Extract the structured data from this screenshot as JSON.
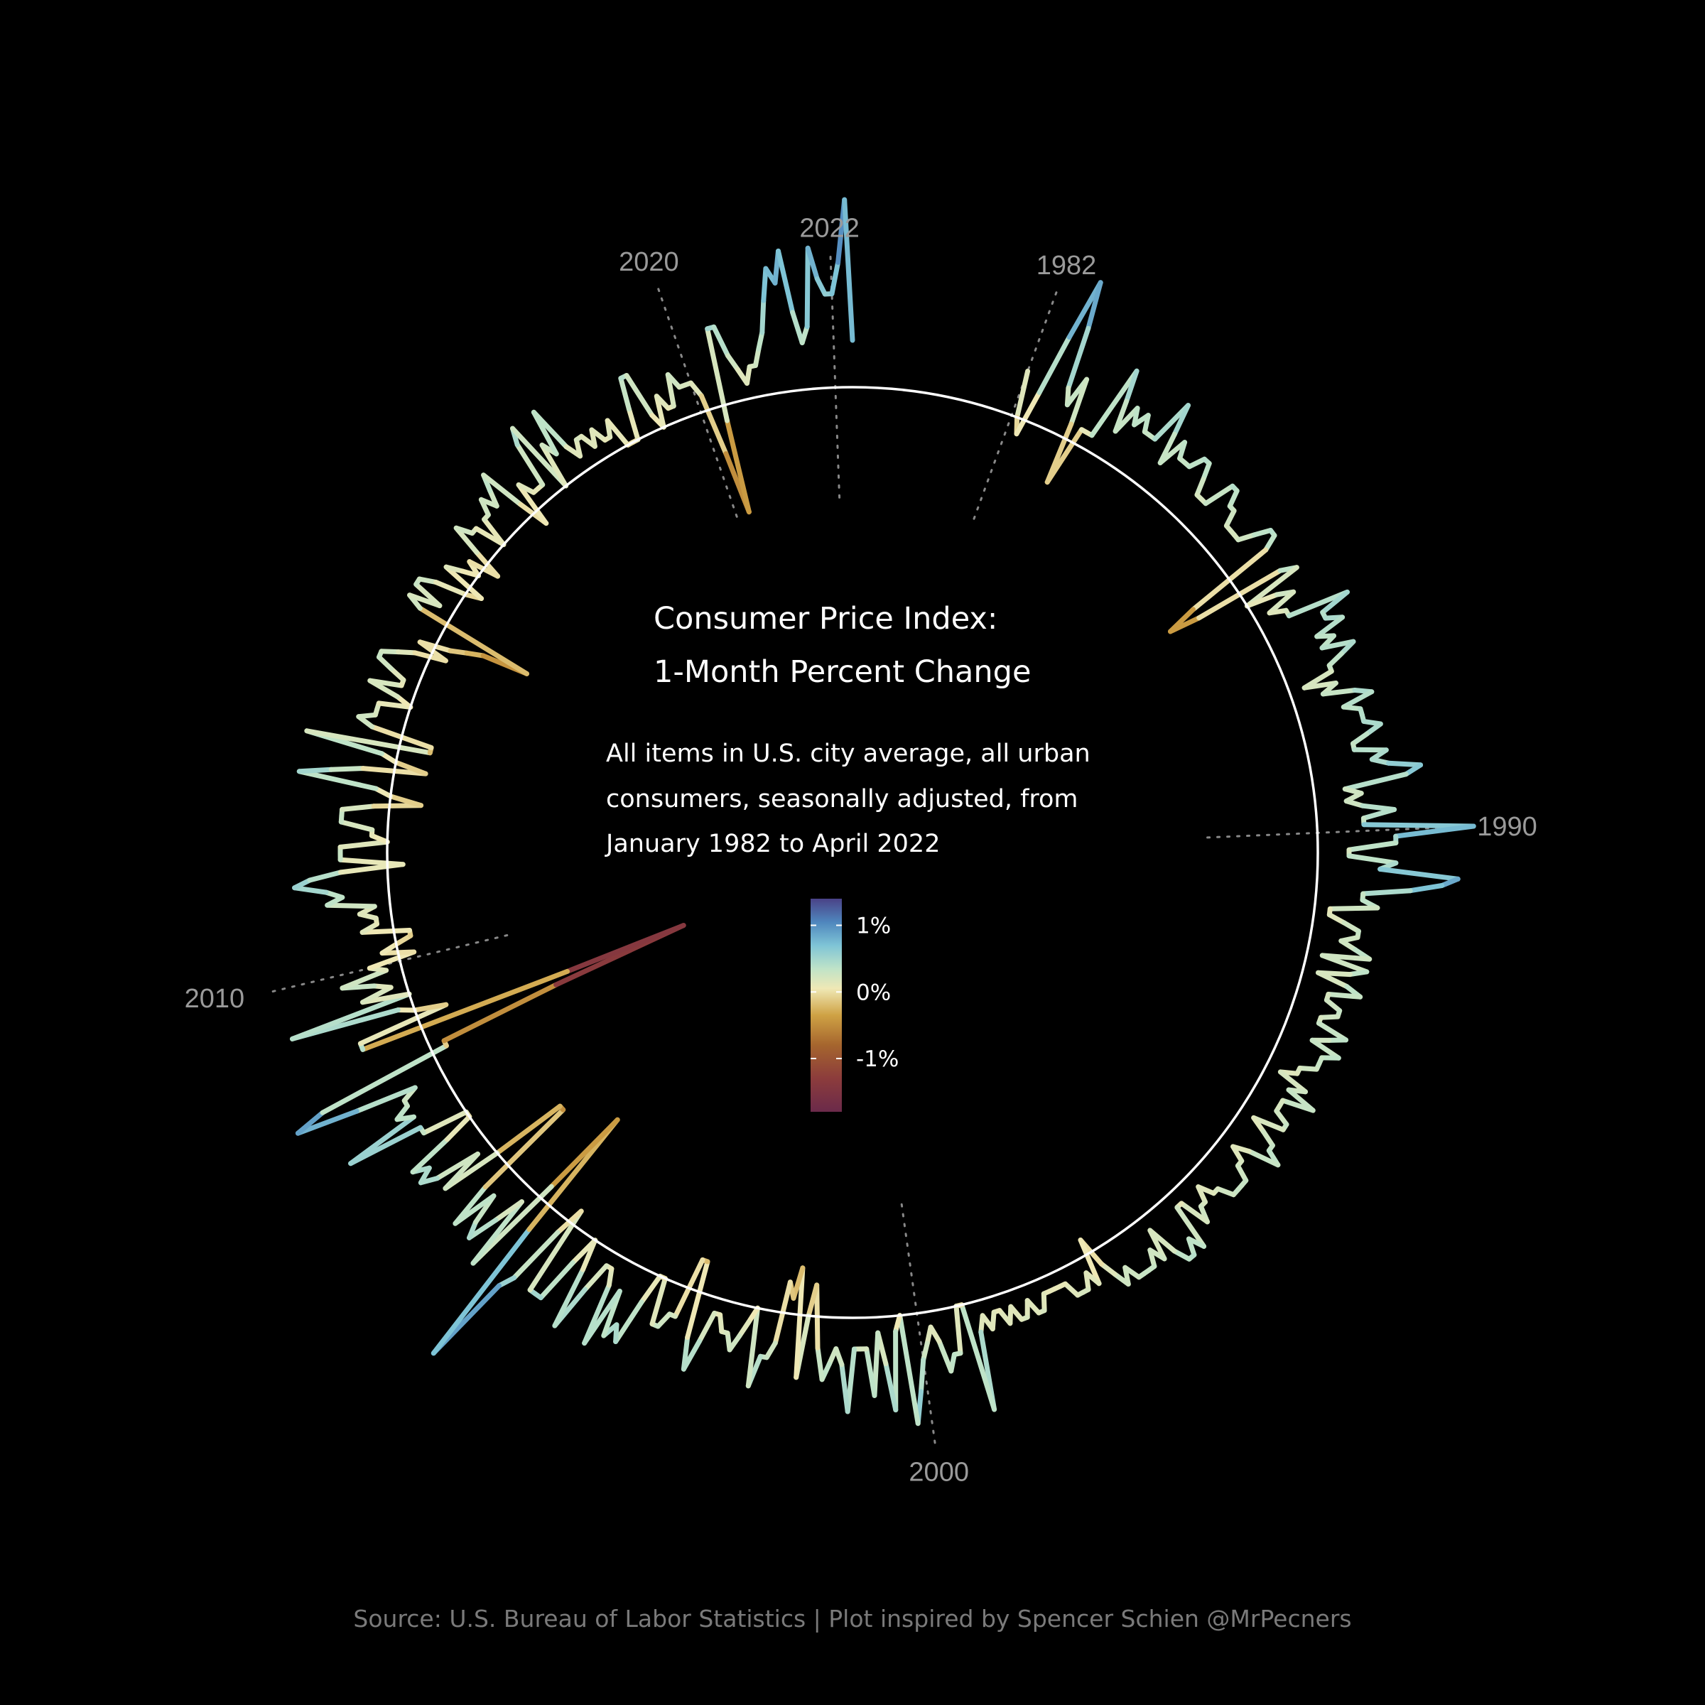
{
  "chart_data": {
    "type": "radial-line",
    "title_lines": [
      "Consumer Price Index:",
      "1-Month Percent Change"
    ],
    "subtitle_lines": [
      "All items in U.S. city average, all urban",
      "consumers, seasonally adjusted, from",
      "January 1982 to April 2022"
    ],
    "source": "Source: U.S. Bureau of Labor Statistics | Plot inspired by Spencer Schien @MrPecners",
    "start": "1982-01",
    "end": "2022-04",
    "unit": "% change from previous month",
    "baseline": 0,
    "direction": "clockwise",
    "year_labels": [
      "1982",
      "1990",
      "2000",
      "2010",
      "2020",
      "2022"
    ],
    "colorbar": {
      "ticks": [
        1,
        0,
        -1
      ],
      "tick_labels": [
        "1%",
        "0%",
        "-1%"
      ],
      "range": [
        -1.8,
        1.4
      ],
      "stops": [
        {
          "v": -1.8,
          "c": "#6b2a4a"
        },
        {
          "v": -1.3,
          "c": "#8c3c3c"
        },
        {
          "v": -0.8,
          "c": "#a5652e"
        },
        {
          "v": -0.35,
          "c": "#cfa244"
        },
        {
          "v": 0.05,
          "c": "#efe8b5"
        },
        {
          "v": 0.35,
          "c": "#bfe3c8"
        },
        {
          "v": 0.7,
          "c": "#7ec4d6"
        },
        {
          "v": 1.05,
          "c": "#4f86bd"
        },
        {
          "v": 1.4,
          "c": "#4a4287"
        }
      ]
    },
    "values_by_year": [
      {
        "year": 1982,
        "values": [
          0.3,
          0.0,
          -0.1,
          0.2,
          0.6,
          1.0,
          0.7,
          0.3,
          0.2,
          0.4,
          0.1,
          -0.3
        ]
      },
      {
        "year": 1983,
        "values": [
          0.1,
          0.1,
          0.1,
          0.6,
          0.4,
          0.2,
          0.4,
          0.3,
          0.4,
          0.3,
          0.3,
          0.3
        ]
      },
      {
        "year": 1984,
        "values": [
          0.6,
          0.4,
          0.2,
          0.4,
          0.3,
          0.3,
          0.3,
          0.4,
          0.4,
          0.3,
          0.2,
          0.2
        ]
      },
      {
        "year": 1985,
        "values": [
          0.2,
          0.4,
          0.4,
          0.3,
          0.3,
          0.2,
          0.2,
          0.2,
          0.2,
          0.3,
          0.4,
          0.4
        ]
      },
      {
        "year": 1986,
        "values": [
          0.3,
          -0.3,
          -0.5,
          -0.3,
          0.3,
          0.4,
          0.0,
          0.2,
          0.3,
          0.1,
          0.2,
          0.2
        ]
      },
      {
        "year": 1987,
        "values": [
          0.6,
          0.4,
          0.4,
          0.5,
          0.3,
          0.4,
          0.3,
          0.5,
          0.4,
          0.3,
          0.3,
          0.1
        ]
      },
      {
        "year": 1988,
        "values": [
          0.3,
          0.2,
          0.4,
          0.5,
          0.3,
          0.4,
          0.4,
          0.4,
          0.5,
          0.4,
          0.3,
          0.3
        ]
      },
      {
        "year": 1989,
        "values": [
          0.5,
          0.4,
          0.5,
          0.7,
          0.6,
          0.2,
          0.3,
          0.2,
          0.3,
          0.5,
          0.3,
          0.3
        ]
      },
      {
        "year": 1990,
        "values": [
          1.0,
          0.5,
          0.5,
          0.2,
          0.2,
          0.5,
          0.4,
          0.9,
          0.8,
          0.6,
          0.3,
          0.3
        ]
      },
      {
        "year": 1991,
        "values": [
          0.4,
          0.1,
          0.1,
          0.2,
          0.3,
          0.3,
          0.2,
          0.3,
          0.4,
          0.1,
          0.4,
          0.3
        ]
      },
      {
        "year": 1992,
        "values": [
          0.1,
          0.3,
          0.4,
          0.2,
          0.2,
          0.3,
          0.3,
          0.2,
          0.2,
          0.4,
          0.3,
          0.2
        ]
      },
      {
        "year": 1993,
        "values": [
          0.4,
          0.3,
          0.3,
          0.3,
          0.2,
          0.2,
          0.1,
          0.3,
          0.2,
          0.4,
          0.2,
          0.2
        ]
      },
      {
        "year": 1994,
        "values": [
          0.2,
          0.3,
          0.3,
          0.1,
          0.2,
          0.3,
          0.3,
          0.4,
          0.2,
          0.1,
          0.2,
          0.2
        ]
      },
      {
        "year": 1995,
        "values": [
          0.3,
          0.3,
          0.3,
          0.3,
          0.2,
          0.2,
          0.1,
          0.2,
          0.2,
          0.3,
          0.1,
          0.1
        ]
      },
      {
        "year": 1996,
        "values": [
          0.4,
          0.3,
          0.4,
          0.4,
          0.3,
          0.1,
          0.3,
          0.2,
          0.3,
          0.3,
          0.3,
          0.3
        ]
      },
      {
        "year": 1997,
        "values": [
          0.2,
          0.3,
          0.2,
          0.1,
          -0.1,
          0.2,
          0.1,
          0.2,
          0.2,
          0.2,
          0.1,
          0.1
        ]
      },
      {
        "year": 1998,
        "values": [
          0.1,
          0.1,
          0.1,
          0.2,
          0.2,
          0.1,
          0.2,
          0.2,
          0.1,
          0.2,
          0.1,
          0.1
        ]
      },
      {
        "year": 1999,
        "values": [
          0.2,
          0.1,
          0.2,
          0.7,
          0.0,
          0.0,
          0.3,
          0.3,
          0.4,
          0.2,
          0.1,
          0.2
        ]
      },
      {
        "year": 2000,
        "values": [
          0.3,
          0.5,
          0.7,
          0.0,
          0.1,
          0.6,
          0.3,
          0.1,
          0.5,
          0.2,
          0.2,
          0.2
        ]
      },
      {
        "year": 2001,
        "values": [
          0.6,
          0.3,
          0.2,
          0.3,
          0.4,
          0.2,
          -0.2,
          0.0,
          0.4,
          -0.3,
          -0.1,
          -0.2
        ]
      },
      {
        "year": 2002,
        "values": [
          0.2,
          0.3,
          0.3,
          0.5,
          0.0,
          0.1,
          0.2,
          0.3,
          0.2,
          0.2,
          0.1,
          0.1
        ]
      },
      {
        "year": 2003,
        "values": [
          0.3,
          0.5,
          0.3,
          -0.2,
          -0.2,
          0.2,
          0.2,
          0.3,
          0.3,
          0.0,
          0.0,
          0.2
        ]
      },
      {
        "year": 2004,
        "values": [
          0.5,
          0.4,
          0.5,
          0.2,
          0.6,
          0.2,
          0.1,
          0.1,
          0.3,
          0.6,
          0.2,
          0.0
        ]
      },
      {
        "year": 2005,
        "values": [
          0.2,
          0.5,
          0.5,
          0.5,
          -0.1,
          0.1,
          0.5,
          0.6,
          1.2,
          0.2,
          -0.7,
          -0.1
        ]
      },
      {
        "year": 2006,
        "values": [
          0.6,
          0.1,
          0.3,
          0.5,
          0.4,
          0.2,
          0.5,
          0.2,
          -0.5,
          -0.5,
          0.0,
          0.4
        ]
      },
      {
        "year": 2007,
        "values": [
          0.1,
          0.4,
          0.5,
          0.4,
          0.5,
          0.2,
          0.0,
          0.0,
          0.3,
          0.3,
          0.8,
          0.3
        ]
      },
      {
        "year": 2008,
        "values": [
          0.4,
          0.3,
          0.3,
          0.2,
          0.6,
          1.0,
          0.8,
          -0.1,
          -0.1,
          -0.9,
          -1.8,
          -1.0
        ]
      },
      {
        "year": 2009,
        "values": [
          0.4,
          0.4,
          -0.2,
          0.0,
          0.1,
          0.8,
          0.0,
          0.3,
          0.1,
          0.2,
          0.4,
          0.1
        ]
      },
      {
        "year": 2010,
        "values": [
          0.2,
          -0.1,
          0.1,
          0.0,
          -0.1,
          -0.1,
          0.2,
          0.1,
          0.1,
          0.2,
          0.1,
          0.4
        ]
      },
      {
        "year": 2011,
        "values": [
          0.3,
          0.4,
          0.6,
          0.5,
          0.3,
          -0.1,
          0.3,
          0.3,
          0.3,
          0.0,
          0.1,
          0.1
        ]
      },
      {
        "year": 2012,
        "values": [
          0.3,
          0.3,
          0.3,
          0.1,
          -0.2,
          0.0,
          0.1,
          0.6,
          0.4,
          0.2,
          -0.2,
          0.0
        ]
      },
      {
        "year": 2013,
        "values": [
          0.1,
          0.6,
          -0.2,
          -0.2,
          0.2,
          0.3,
          0.2,
          0.2,
          0.2,
          0.0,
          0.1,
          0.3
        ]
      },
      {
        "year": 2014,
        "values": [
          0.1,
          0.1,
          0.2,
          0.3,
          0.3,
          0.2,
          0.1,
          -0.1,
          0.1,
          -0.1,
          -0.2,
          -0.3
        ]
      },
      {
        "year": 2015,
        "values": [
          -0.6,
          0.2,
          0.3,
          0.1,
          0.3,
          0.3,
          0.2,
          0.0,
          -0.1,
          0.2,
          0.1,
          0.0
        ]
      },
      {
        "year": 2016,
        "values": [
          0.1,
          -0.1,
          0.1,
          0.3,
          0.2,
          0.2,
          0.0,
          0.2,
          0.2,
          0.3,
          0.2,
          0.3
        ]
      },
      {
        "year": 2017,
        "values": [
          0.4,
          0.1,
          -0.1,
          0.2,
          0.1,
          0.1,
          0.1,
          0.4,
          0.5,
          0.0,
          0.3,
          0.2
        ]
      },
      {
        "year": 2018,
        "values": [
          0.5,
          0.2,
          0.1,
          0.2,
          0.2,
          0.1,
          0.2,
          0.1,
          0.1,
          0.2,
          0.0,
          0.0
        ]
      },
      {
        "year": 2019,
        "values": [
          0.0,
          0.2,
          0.4,
          0.4,
          0.1,
          0.0,
          0.2,
          0.1,
          0.1,
          0.3,
          0.2,
          0.2
        ]
      },
      {
        "year": 2020,
        "values": [
          0.2,
          0.1,
          -0.3,
          -0.7,
          -0.1,
          0.5,
          0.5,
          0.3,
          0.2,
          0.1,
          0.2,
          0.2
        ]
      },
      {
        "year": 2021,
        "values": [
          0.3,
          0.4,
          0.6,
          0.8,
          0.7,
          0.9,
          0.5,
          0.3,
          0.4,
          0.9,
          0.7,
          0.6
        ]
      },
      {
        "year": 2022,
        "values": [
          0.6,
          0.8,
          1.2,
          0.3
        ]
      }
    ]
  }
}
